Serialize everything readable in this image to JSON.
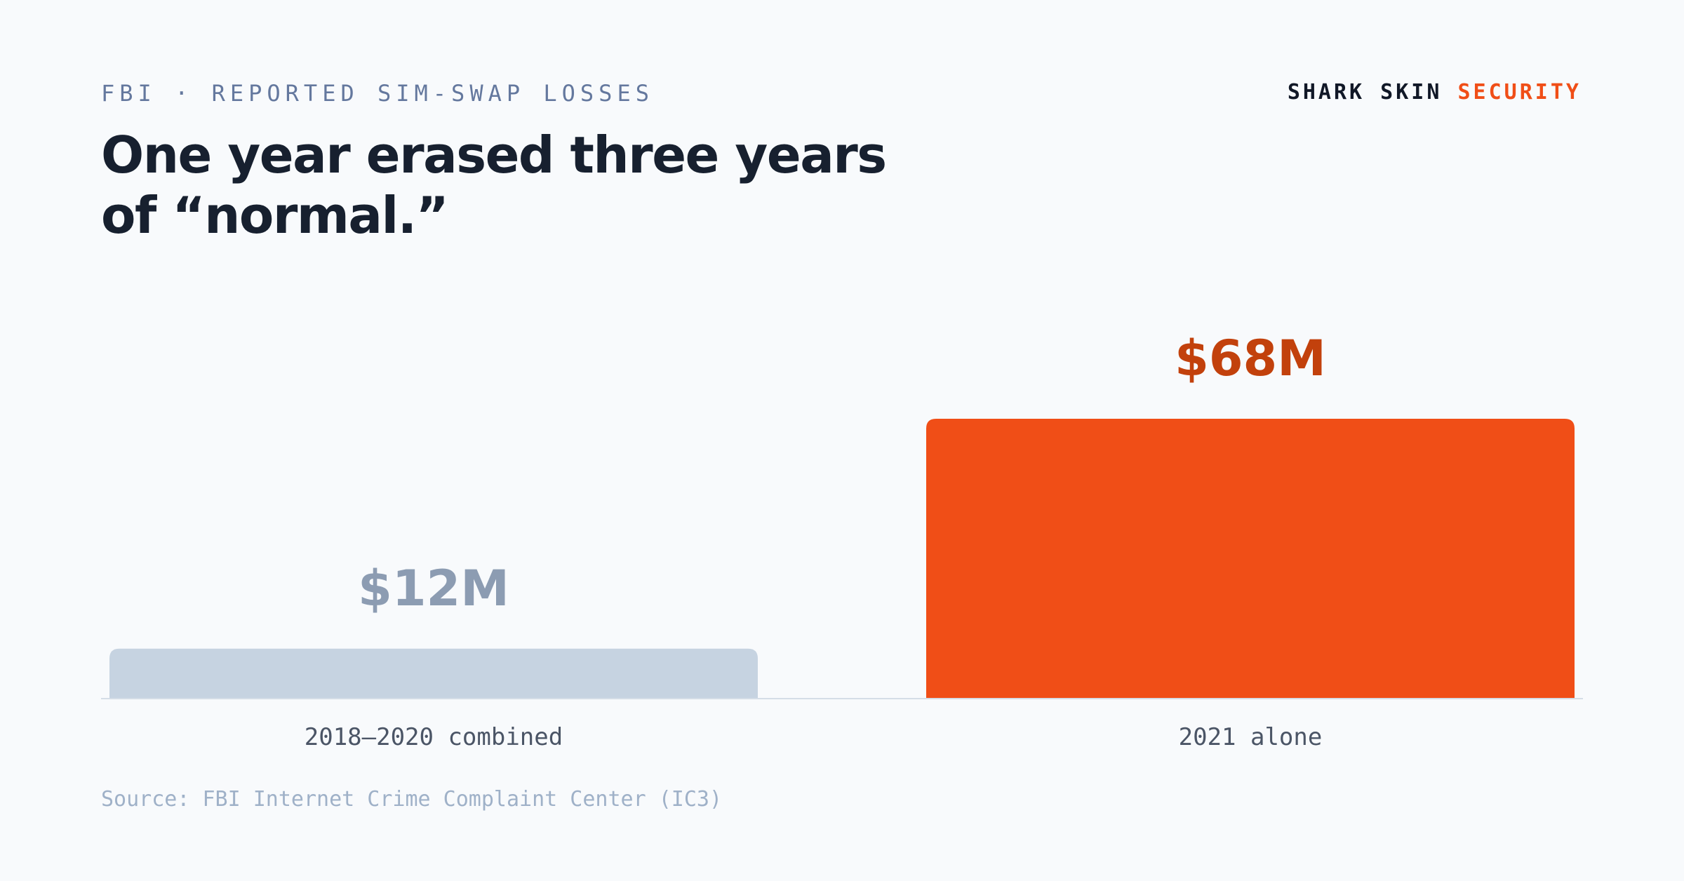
{
  "header": {
    "eyebrow": "FBI · REPORTED SIM-SWAP LOSSES",
    "title": "One year erased three years of “normal.”",
    "brand_part1": "SHARK SKIN",
    "brand_part2": "SECURITY"
  },
  "footer": {
    "source": "Source: FBI Internet Crime Complaint Center (IC3)"
  },
  "colors": {
    "accent": "#f04e17",
    "accent_label": "#c2410c",
    "muted_bar": "#c6d3e1",
    "muted_label": "#8c9cb2",
    "axis_label": "#4b5566",
    "baseline": "#d5dde7"
  },
  "chart_data": {
    "type": "bar",
    "categories": [
      "2018–2020 combined",
      "2021 alone"
    ],
    "values": [
      12,
      68
    ],
    "data_labels": [
      "$12M",
      "$68M"
    ],
    "title": "One year erased three years of “normal.”",
    "xlabel": "",
    "ylabel": "",
    "unit": "$M",
    "grid": false,
    "legend": "none"
  }
}
